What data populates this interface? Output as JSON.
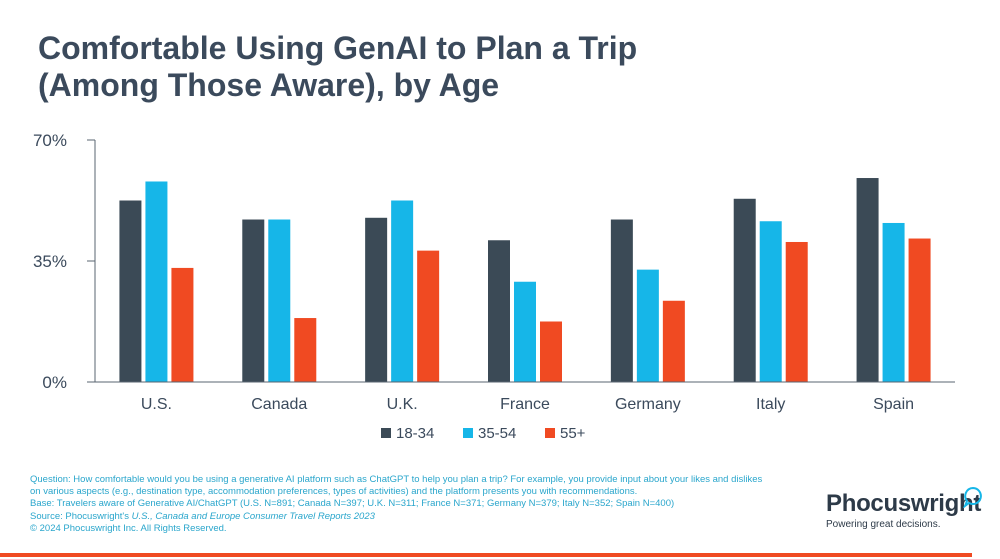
{
  "title_lines": [
    "Comfortable Using GenAI to Plan a Trip",
    "(Among Those Aware), by Age"
  ],
  "chart_data": {
    "type": "bar",
    "title": "Comfortable Using GenAI to Plan a Trip (Among Those Aware), by Age",
    "categories": [
      "U.S.",
      "Canada",
      "U.K.",
      "France",
      "Germany",
      "Italy",
      "Spain"
    ],
    "series": [
      {
        "name": "18-34",
        "color": "#3b4a56",
        "values": [
          52.5,
          47,
          47.5,
          41,
          47,
          53,
          59
        ]
      },
      {
        "name": "35-54",
        "color": "#16b6e8",
        "values": [
          58,
          47,
          52.5,
          29,
          32.5,
          46.5,
          46
        ]
      },
      {
        "name": "55+",
        "color": "#f04a22",
        "values": [
          33,
          18.5,
          38,
          17.5,
          23.5,
          40.5,
          41.5
        ]
      }
    ],
    "ylim": [
      0,
      70
    ],
    "yticks": [
      0,
      35,
      70
    ],
    "ytick_labels": [
      "0%",
      "35%",
      "70%"
    ],
    "grid": false,
    "legend": "bottom-center"
  },
  "footnote": {
    "question_line1": "Question: How comfortable would you be using a generative AI platform such as ChatGPT to help you plan a trip? For example, you provide input about your likes and dislikes",
    "question_line2": "on various aspects (e.g., destination type, accommodation preferences, types of activities) and the platform presents you with recommendations.",
    "base": "Base: Travelers aware of Generative AI/ChatGPT (U.S. N=891; Canada N=397; U.K. N=311; France N=371; Germany N=379; Italy N=352; Spain N=400)",
    "source_prefix": "Source: Phocuswright's ",
    "source_title": "U.S., Canada and Europe Consumer Travel Reports 2023",
    "copyright": "© 2024 Phocuswright Inc. All Rights Reserved."
  },
  "brand": {
    "name": "Phocuswright",
    "tagline": "Powering great decisions.",
    "accent": "#16b6e8"
  }
}
